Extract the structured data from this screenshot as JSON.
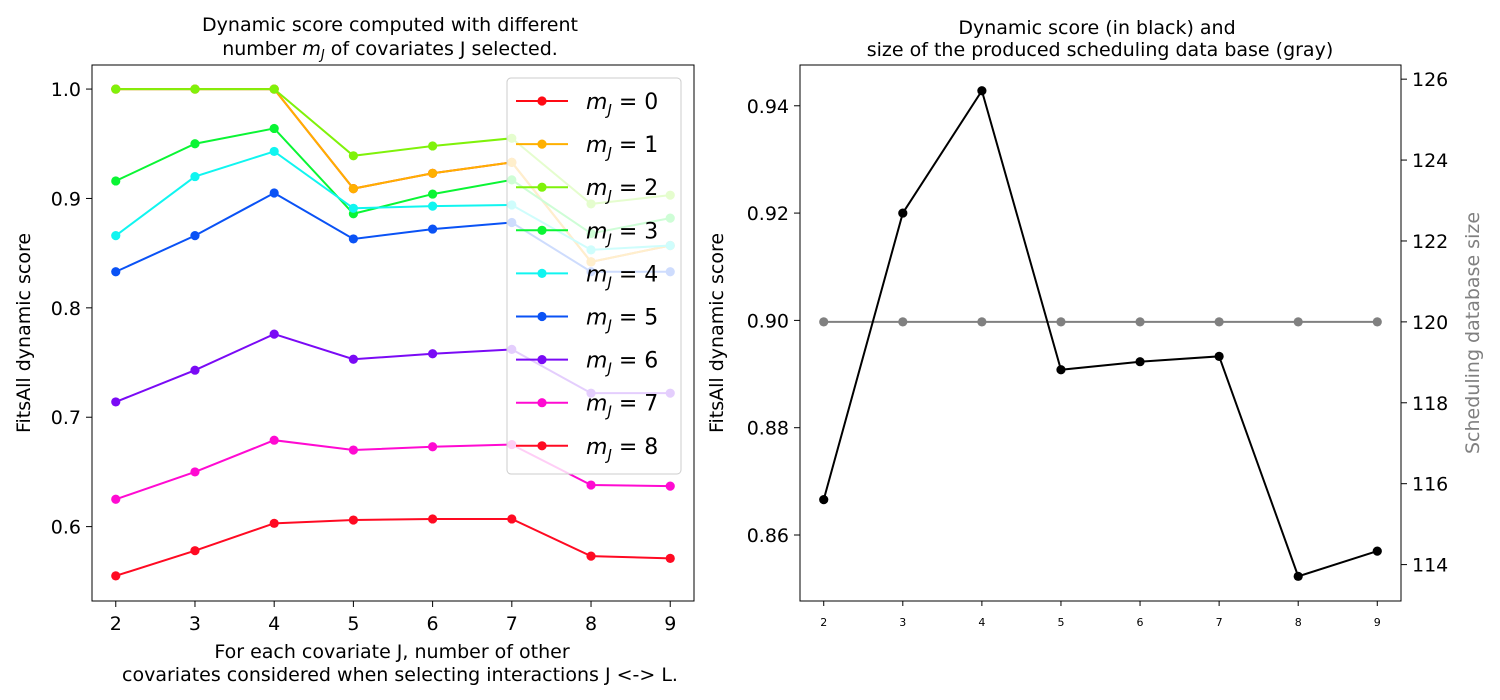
{
  "chart_data": [
    {
      "type": "line",
      "title_line1": "Dynamic score computed with different",
      "title_line2_pre": "number ",
      "title_line2_var": "m",
      "title_line2_sub": "J",
      "title_line2_post": " of covariates J selected.",
      "xlabel_line1": "For each covariate J, number of other",
      "xlabel_line2": "covariates considered when selecting interactions J <-> L.",
      "ylabel": "FitsAll dynamic score",
      "x": [
        2,
        3,
        4,
        5,
        6,
        7,
        8,
        9
      ],
      "xlim": [
        1.7,
        9.3
      ],
      "ylim": [
        0.532,
        1.022
      ],
      "yticks": [
        "0.6",
        "0.7",
        "0.8",
        "0.9",
        "1.0"
      ],
      "ytick_values": [
        0.6,
        0.7,
        0.8,
        0.9,
        1.0
      ],
      "legend_position": "top-right",
      "series": [
        {
          "name": "m_J = 0",
          "label_var": "m",
          "label_sub": "J",
          "label_rest": " = 0",
          "color": "#ff0a14",
          "values": [
            1.0,
            1.0,
            1.0,
            0.909,
            0.923,
            0.933,
            0.842,
            0.857
          ]
        },
        {
          "name": "m_J = 1",
          "label_var": "m",
          "label_sub": "J",
          "label_rest": " = 1",
          "color": "#ffb000",
          "values": [
            1.0,
            1.0,
            1.0,
            0.909,
            0.923,
            0.933,
            0.842,
            0.857
          ]
        },
        {
          "name": "m_J = 2",
          "label_var": "m",
          "label_sub": "J",
          "label_rest": " = 2",
          "color": "#7ff20a",
          "values": [
            1.0,
            1.0,
            1.0,
            0.939,
            0.948,
            0.955,
            0.895,
            0.903
          ]
        },
        {
          "name": "m_J = 3",
          "label_var": "m",
          "label_sub": "J",
          "label_rest": " = 3",
          "color": "#0af534",
          "values": [
            0.916,
            0.95,
            0.964,
            0.886,
            0.904,
            0.917,
            0.868,
            0.882
          ]
        },
        {
          "name": "m_J = 4",
          "label_var": "m",
          "label_sub": "J",
          "label_rest": " = 4",
          "color": "#10f5f0",
          "values": [
            0.866,
            0.92,
            0.943,
            0.891,
            0.893,
            0.894,
            0.853,
            0.857
          ]
        },
        {
          "name": "m_J = 5",
          "label_var": "m",
          "label_sub": "J",
          "label_rest": " = 5",
          "color": "#0a52f5",
          "values": [
            0.833,
            0.866,
            0.905,
            0.863,
            0.872,
            0.878,
            0.833,
            0.833
          ]
        },
        {
          "name": "m_J = 6",
          "label_var": "m",
          "label_sub": "J",
          "label_rest": " = 6",
          "color": "#7a0af5",
          "values": [
            0.714,
            0.743,
            0.776,
            0.753,
            0.758,
            0.762,
            0.722,
            0.722
          ]
        },
        {
          "name": "m_J = 7",
          "label_var": "m",
          "label_sub": "J",
          "label_rest": " = 7",
          "color": "#ff0ad2",
          "values": [
            0.625,
            0.65,
            0.679,
            0.67,
            0.673,
            0.675,
            0.638,
            0.637
          ]
        },
        {
          "name": "m_J = 8",
          "label_var": "m",
          "label_sub": "J",
          "label_rest": " = 8",
          "color": "#ff0a22",
          "values": [
            0.555,
            0.578,
            0.603,
            0.606,
            0.607,
            0.607,
            0.573,
            0.571
          ]
        }
      ]
    },
    {
      "type": "line",
      "title_line1": "Dynamic score  (in black) and",
      "title_line2": "size of the produced scheduling data base (gray)",
      "ylabel": "FitsAll dynamic score",
      "ylabel_right": "Scheduling database size",
      "x": [
        2,
        3,
        4,
        5,
        6,
        7,
        8,
        9
      ],
      "xlim": [
        1.7,
        9.3
      ],
      "ylim": [
        0.8477,
        0.9476
      ],
      "yticks": [
        "0.86",
        "0.88",
        "0.90",
        "0.92",
        "0.94"
      ],
      "ytick_values": [
        0.86,
        0.88,
        0.9,
        0.92,
        0.94
      ],
      "ylim_right": [
        113.1,
        126.35
      ],
      "yticks_right": [
        "114",
        "116",
        "118",
        "120",
        "122",
        "124",
        "126"
      ],
      "ytick_values_right": [
        114,
        116,
        118,
        120,
        122,
        124,
        126
      ],
      "series": [
        {
          "axis": "left",
          "color": "#000000",
          "values": [
            0.8666,
            0.92,
            0.9428,
            0.8908,
            0.8923,
            0.8933,
            0.8523,
            0.857
          ]
        },
        {
          "axis": "right",
          "color": "#808080",
          "values": [
            120,
            120,
            120,
            120,
            120,
            120,
            120,
            120
          ]
        }
      ]
    }
  ]
}
